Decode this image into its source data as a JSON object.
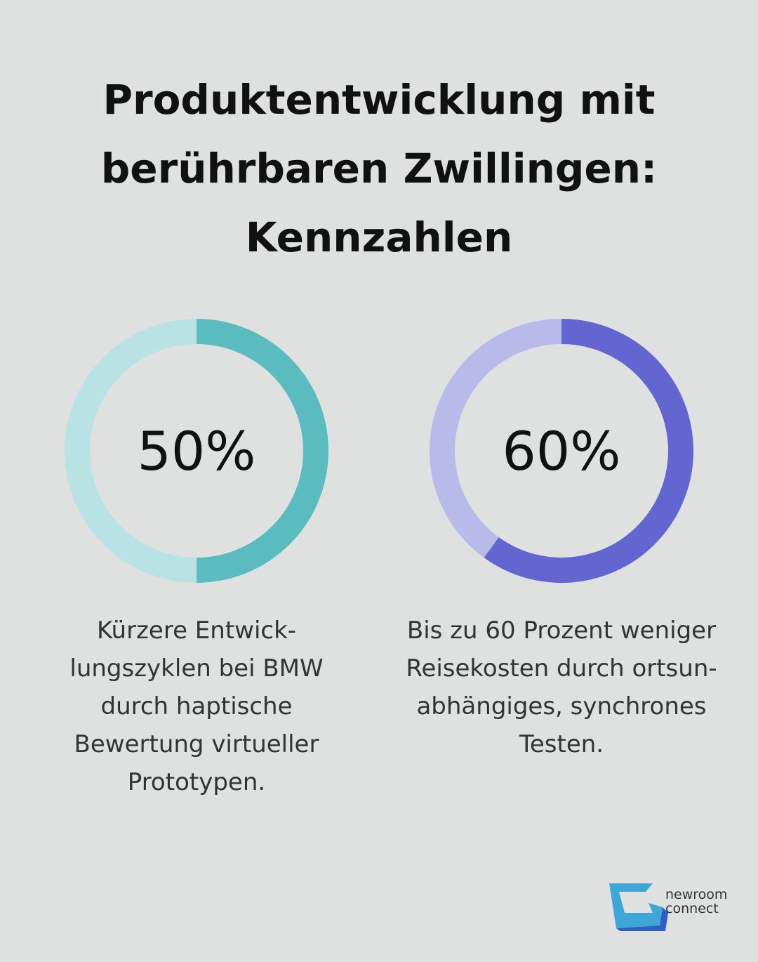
{
  "header": {
    "title": [
      "Produktentwicklung mit",
      "berührbaren Zwillingen:",
      "Kennzahlen"
    ]
  },
  "chart_data": [
    {
      "type": "pie",
      "values": [
        50,
        50
      ],
      "value_labels": [
        "50%",
        null
      ],
      "colors": [
        "#5bbcbf",
        "#b9e2e4"
      ],
      "description": [
        "Kürzere Entwick-",
        "lungszyklen bei BMW",
        "durch haptische",
        "Bewertung virtueller",
        "Prototypen."
      ]
    },
    {
      "type": "pie",
      "values": [
        60,
        40
      ],
      "value_labels": [
        "60%",
        null
      ],
      "colors": [
        "#6366d1",
        "#b8bbe9"
      ],
      "description": [
        "Bis zu 60 Prozent weniger",
        "Reisekosten durch ortsun-",
        "abhängiges, synchrones",
        "Testen."
      ]
    }
  ],
  "logo": {
    "lines": [
      "newroom",
      "connect"
    ]
  }
}
